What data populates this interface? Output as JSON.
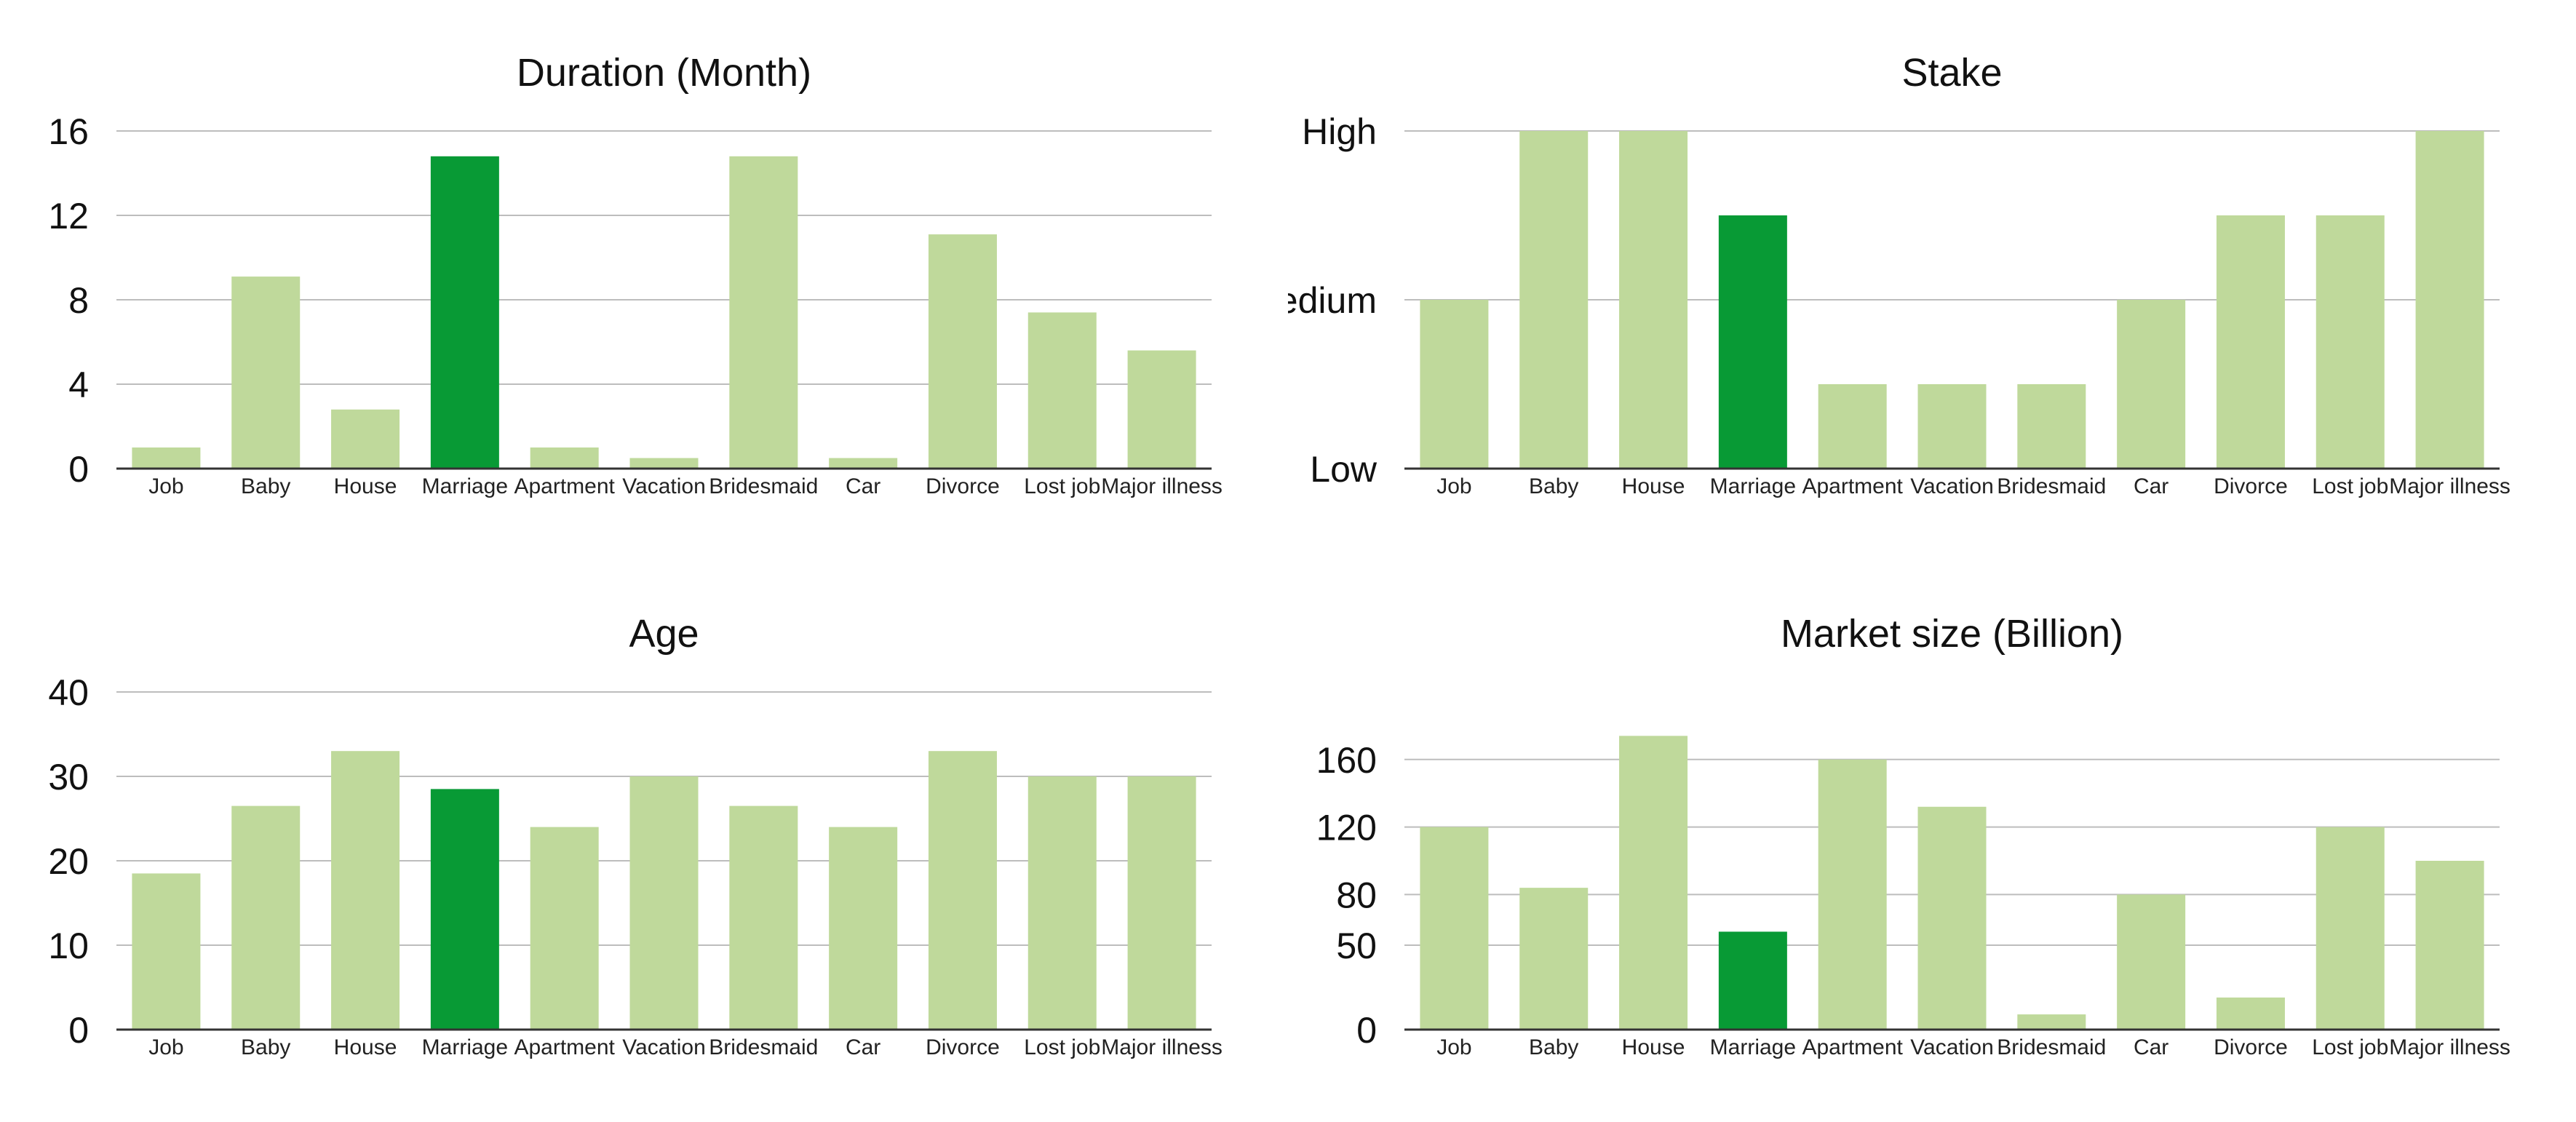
{
  "chart_data": [
    {
      "type": "bar",
      "title": "Duration (Month)",
      "categories": [
        "Job",
        "Baby",
        "House",
        "Marriage",
        "Apartment",
        "Vacation",
        "Bridesmaid",
        "Car",
        "Divorce",
        "Lost job",
        "Major illness"
      ],
      "values": [
        1,
        9.1,
        2.8,
        14.8,
        1,
        0.5,
        14.8,
        0.5,
        11.1,
        7.4,
        5.6
      ],
      "highlight": "Marriage",
      "yticks": [
        0,
        4,
        8,
        12,
        16
      ],
      "ytick_labels": [
        "0",
        "4",
        "8",
        "12",
        "16"
      ],
      "ylim": [
        0,
        16
      ],
      "xlabel": "",
      "ylabel": "",
      "grid": true,
      "colors": {
        "bar": "#bfd99b",
        "highlight": "#089a35"
      }
    },
    {
      "type": "bar",
      "title": "Stake",
      "categories": [
        "Job",
        "Baby",
        "House",
        "Marriage",
        "Apartment",
        "Vacation",
        "Bridesmaid",
        "Car",
        "Divorce",
        "Lost job",
        "Major illness"
      ],
      "values": [
        2,
        4,
        4,
        3,
        1,
        1,
        1,
        2,
        3,
        3,
        4
      ],
      "highlight": "Marriage",
      "yticks": [
        0,
        2,
        4
      ],
      "ytick_labels": [
        "Low",
        "Medium",
        "High"
      ],
      "ylim": [
        0,
        4
      ],
      "xlabel": "",
      "ylabel": "",
      "grid": true,
      "colors": {
        "bar": "#bfd99b",
        "highlight": "#089a35"
      }
    },
    {
      "type": "bar",
      "title": "Age",
      "categories": [
        "Job",
        "Baby",
        "House",
        "Marriage",
        "Apartment",
        "Vacation",
        "Bridesmaid",
        "Car",
        "Divorce",
        "Lost job",
        "Major illness"
      ],
      "values": [
        18.5,
        26.5,
        33,
        28.5,
        24,
        30,
        26.5,
        24,
        33,
        30,
        30
      ],
      "highlight": "Marriage",
      "yticks": [
        0,
        10,
        20,
        30,
        40
      ],
      "ytick_labels": [
        "0",
        "10",
        "20",
        "30",
        "40"
      ],
      "ylim": [
        0,
        40
      ],
      "xlabel": "",
      "ylabel": "",
      "grid": true,
      "colors": {
        "bar": "#bfd99b",
        "highlight": "#089a35"
      }
    },
    {
      "type": "bar",
      "title": "Market size (Billion)",
      "categories": [
        "Job",
        "Baby",
        "House",
        "Marriage",
        "Apartment",
        "Vacation",
        "Bridesmaid",
        "Car",
        "Divorce",
        "Lost job",
        "Major illness"
      ],
      "values": [
        120,
        84,
        174,
        58,
        160,
        132,
        9,
        80,
        19,
        120,
        100
      ],
      "highlight": "Marriage",
      "yticks": [
        0,
        50,
        80,
        120,
        160
      ],
      "ytick_labels": [
        "0",
        "50",
        "80",
        "120",
        "160"
      ],
      "ylim": [
        0,
        200
      ],
      "xlabel": "",
      "ylabel": "",
      "grid": true,
      "colors": {
        "bar": "#bfd99b",
        "highlight": "#089a35"
      }
    }
  ]
}
